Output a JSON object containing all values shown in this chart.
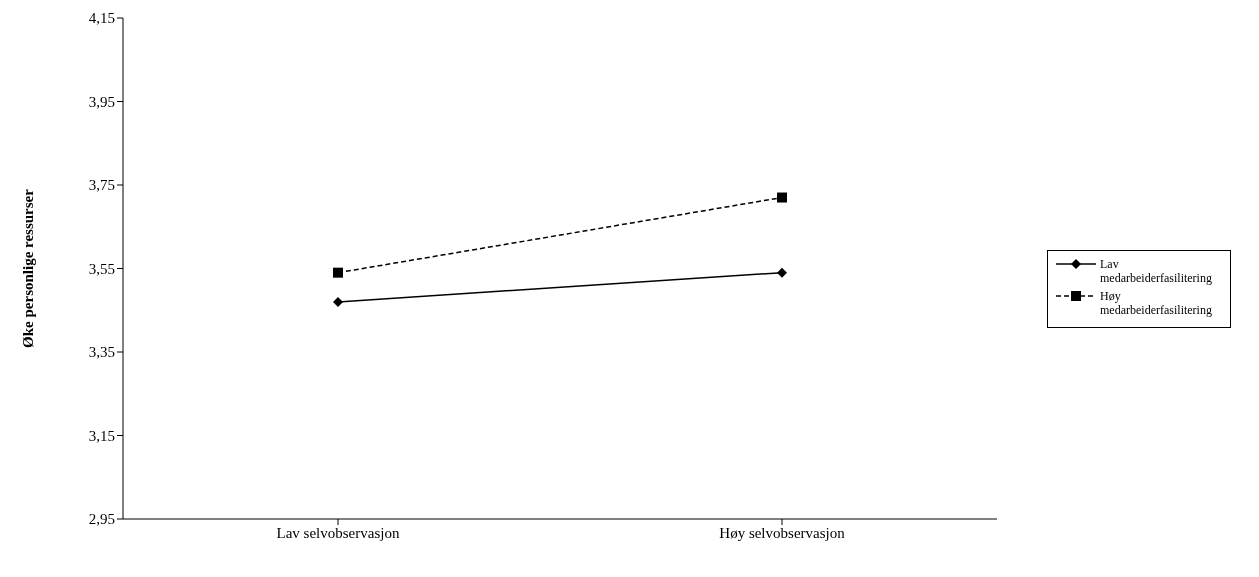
{
  "chart_data": {
    "type": "line",
    "ylabel": "Øke personlige ressurser",
    "categories": [
      "Lav selvobservasjon",
      "Høy selvobservasjon"
    ],
    "series": [
      {
        "name": "Lav medarbeiderfasilitering",
        "color": "#000000",
        "values": [
          3.47,
          3.54
        ],
        "marker": "diamond",
        "line_style": "solid"
      },
      {
        "name": "Høy medarbeiderfasilitering",
        "color": "#000000",
        "values": [
          3.54,
          3.72
        ],
        "marker": "square",
        "line_style": "dashed"
      }
    ],
    "ylim": [
      2.95,
      4.15
    ],
    "yticks": [
      {
        "value": 2.95,
        "label": "2,95"
      },
      {
        "value": 3.15,
        "label": "3,15"
      },
      {
        "value": 3.35,
        "label": "3,35"
      },
      {
        "value": 3.55,
        "label": "3,55"
      },
      {
        "value": 3.75,
        "label": "3,75"
      },
      {
        "value": 3.95,
        "label": "3,95"
      },
      {
        "value": 4.15,
        "label": "4,15"
      }
    ],
    "grid": false,
    "legend": "right"
  }
}
